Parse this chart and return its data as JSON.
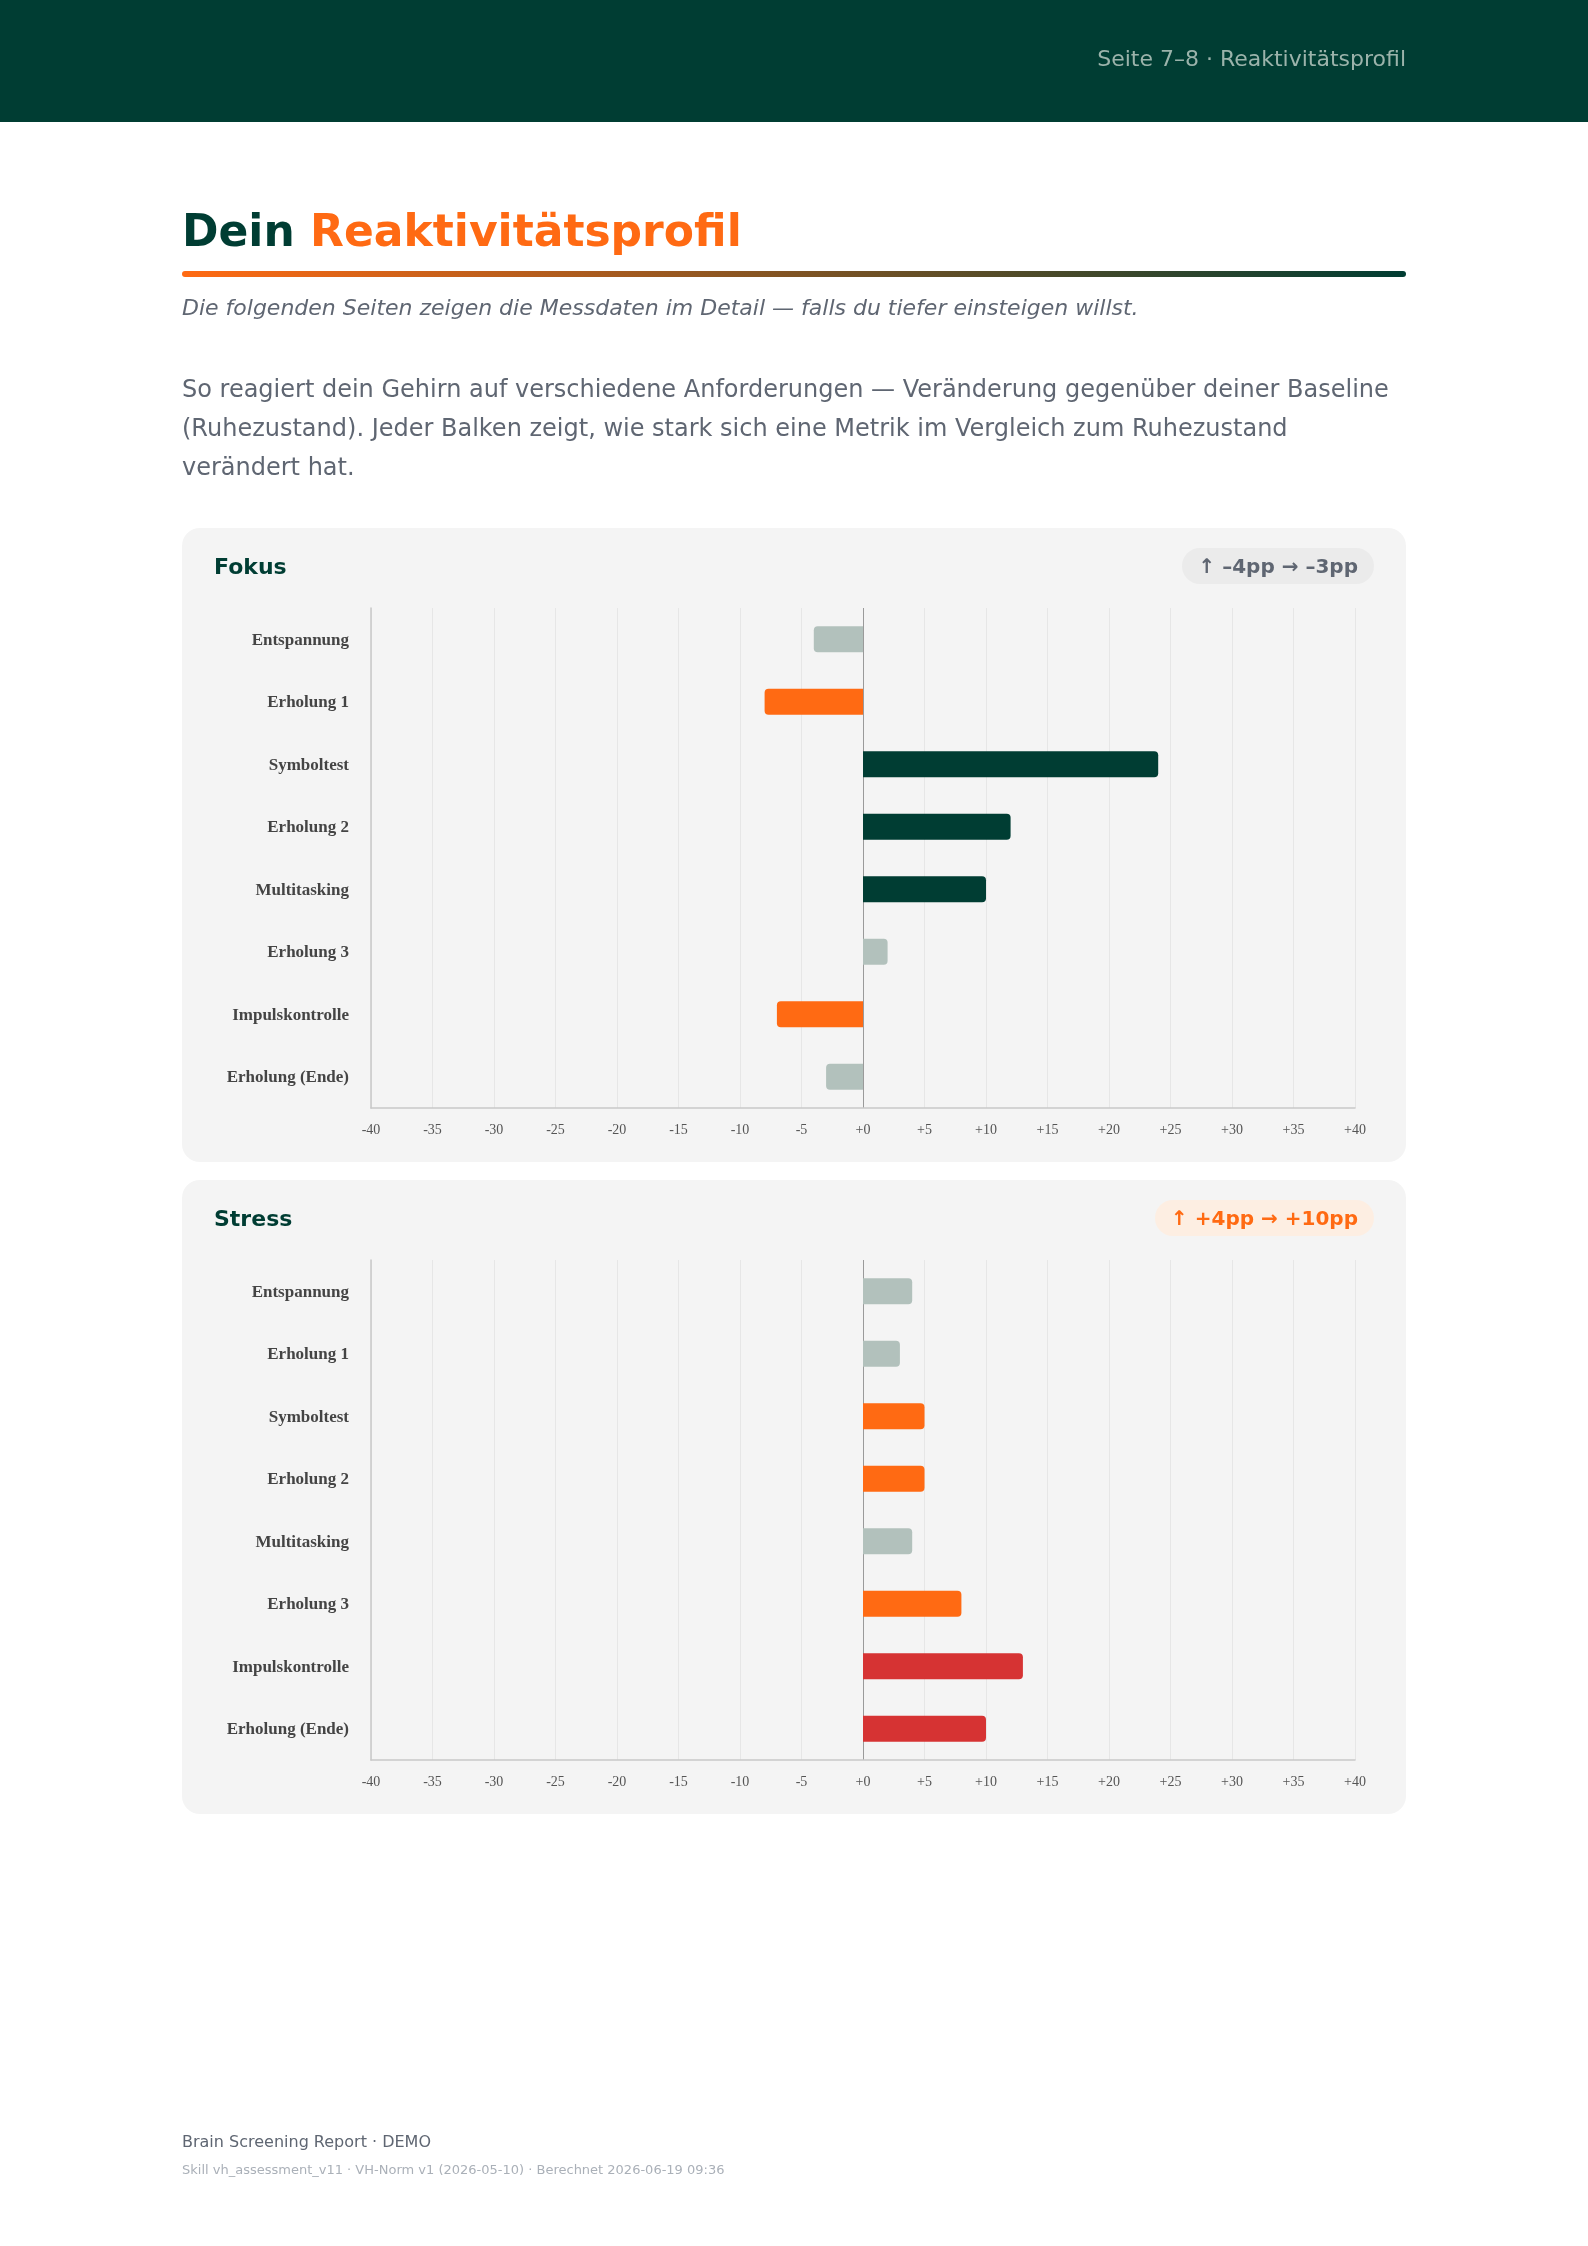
{
  "chart_data": [
    {
      "type": "other",
      "title": "Dein Reaktivitätsprofil",
      "subtitle": "Die folgenden Seiten zeigen die Messdaten im Detail — falls du tiefer einsteigen willst.",
      "annotations": [
        "Seite 7–8 · Reaktivitätsprofil",
        "So reagiert dein Gehirn auf verschiedene Anforderungen — Veränderung gegenüber deiner Baseline (Ruhezustand). Jeder Balken zeigt, wie stark sich eine Metrik im Vergleich zum Ruhezustand verändert hat."
      ]
    },
    {
      "type": "bar",
      "orientation": "horizontal",
      "title": "Fokus",
      "annotations": [
        "↑ –4pp → –3pp"
      ],
      "categories": [
        "Entspannung",
        "Erholung 1",
        "Symboltest",
        "Erholung 2",
        "Multitasking",
        "Erholung 3",
        "Impulskontrolle",
        "Erholung (Ende)"
      ],
      "values": [
        -4,
        -8,
        24,
        12,
        10,
        2,
        -7,
        -3
      ],
      "colors": [
        "#b2c1bc",
        "#ff6a13",
        "#003d33",
        "#003d33",
        "#003d33",
        "#b2c1bc",
        "#ff6a13",
        "#b2c1bc"
      ],
      "xlim": [
        -40,
        40
      ],
      "xticks": [
        -40,
        -35,
        -30,
        -25,
        -20,
        -15,
        -10,
        -5,
        {
          "value": 0,
          "label": "+0"
        },
        {
          "value": 5,
          "label": "+5"
        },
        {
          "value": 10,
          "label": "+10"
        },
        {
          "value": 15,
          "label": "+15"
        },
        {
          "value": 20,
          "label": "+20"
        },
        {
          "value": 25,
          "label": "+25"
        },
        {
          "value": 30,
          "label": "+30"
        },
        {
          "value": 35,
          "label": "+35"
        },
        {
          "value": 40,
          "label": "+40"
        }
      ],
      "grid": "x"
    },
    {
      "type": "bar",
      "orientation": "horizontal",
      "title": "Stress",
      "annotations": [
        "↑ +4pp → +10pp"
      ],
      "categories": [
        "Entspannung",
        "Erholung 1",
        "Symboltest",
        "Erholung 2",
        "Multitasking",
        "Erholung 3",
        "Impulskontrolle",
        "Erholung (Ende)"
      ],
      "values": [
        4,
        3,
        5,
        5,
        4,
        8,
        13,
        10
      ],
      "colors": [
        "#b2c1bc",
        "#b2c1bc",
        "#ff6a13",
        "#ff6a13",
        "#b2c1bc",
        "#ff6a13",
        "#d63333",
        "#d63333"
      ],
      "xlim": [
        -40,
        40
      ],
      "xticks": [
        -40,
        -35,
        -30,
        -25,
        -20,
        -15,
        -10,
        -5,
        {
          "value": 0,
          "label": "+0"
        },
        {
          "value": 5,
          "label": "+5"
        },
        {
          "value": 10,
          "label": "+10"
        },
        {
          "value": 15,
          "label": "+15"
        },
        {
          "value": 20,
          "label": "+20"
        },
        {
          "value": 25,
          "label": "+25"
        },
        {
          "value": 30,
          "label": "+30"
        },
        {
          "value": 35,
          "label": "+35"
        },
        {
          "value": 40,
          "label": "+40"
        }
      ],
      "grid": "x"
    },
    {
      "type": "other",
      "annotations": [
        "Brain Screening Report · DEMO",
        "Skill vh_assessment_v11 · VH-Norm v1 (2026-05-10) · Berechnet 2026-06-19 09:36"
      ]
    }
  ]
}
